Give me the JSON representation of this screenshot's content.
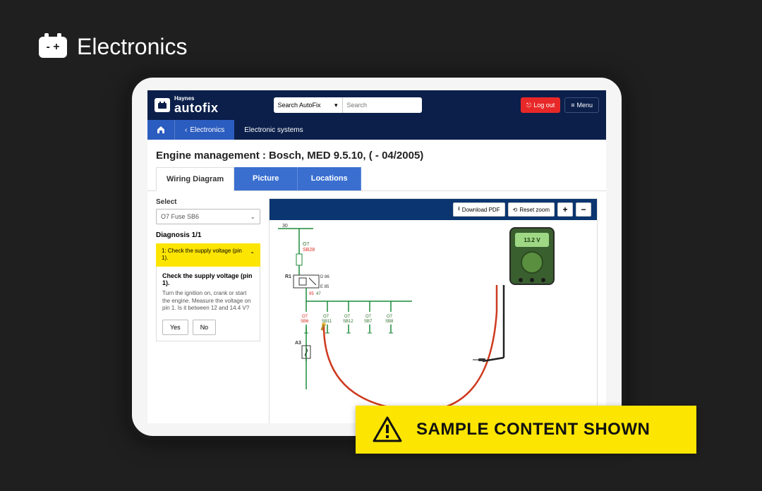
{
  "category": {
    "title": "Electronics",
    "icon_label": "- +"
  },
  "header": {
    "brand": "Haynes",
    "product": "autofix",
    "search_scope": "Search AutoFix",
    "search_placeholder": "Search",
    "logout": "Log out",
    "menu": "Menu"
  },
  "breadcrumb": {
    "back_label": "Electronics",
    "current": "Electronic systems"
  },
  "page_title": "Engine management :  Bosch, MED 9.5.10, ( - 04/2005)",
  "tabs": {
    "wiring": "Wiring Diagram",
    "picture": "Picture",
    "locations": "Locations"
  },
  "left": {
    "select_label": "Select",
    "select_value": "O7  Fuse  SB6",
    "diag_header": "Diagnosis 1/1",
    "step_title": "1: Check the supply voltage (pin 1).",
    "body_title": "Check the supply voltage (pin 1).",
    "body_text": "Turn the ignition on, crank or start the engine. Measure the voltage on pin 1. Is it between 12 and 14.4 V?",
    "yes": "Yes",
    "no": "No"
  },
  "toolbar": {
    "pdf": "Download PDF",
    "reset": "Reset zoom",
    "zoom_in": "+",
    "zoom_out": "−"
  },
  "meter": {
    "reading": "13.2 V"
  },
  "diagram": {
    "top_label": "30",
    "o7_label": "O7",
    "sb28": "SB28",
    "r1": "R1",
    "d_pin": "D 86",
    "e_pin": "E 85",
    "a3": "A3",
    "stub_labels": [
      {
        "t": "O7",
        "b": "SB6"
      },
      {
        "t": "O7",
        "b": "SB11"
      },
      {
        "t": "O7",
        "b": "SB12"
      },
      {
        "t": "O7",
        "b": "SB7"
      },
      {
        "t": "O7",
        "b": "SB8"
      }
    ],
    "stub_color_highlight": "#d9281c",
    "stub_color": "#2d6e2a",
    "wire_green": "#1b8a3a",
    "wire_red": "#ce3a1f",
    "wire_black": "#222"
  },
  "banner": {
    "text": "SAMPLE CONTENT SHOWN"
  },
  "colors": {
    "bg": "#1f1f1f",
    "header_navy": "#0b1f4a",
    "blue": "#2b5cbf",
    "tab_blue": "#3a6fd0",
    "yellow": "#fde502",
    "logout_red": "#e82828"
  }
}
